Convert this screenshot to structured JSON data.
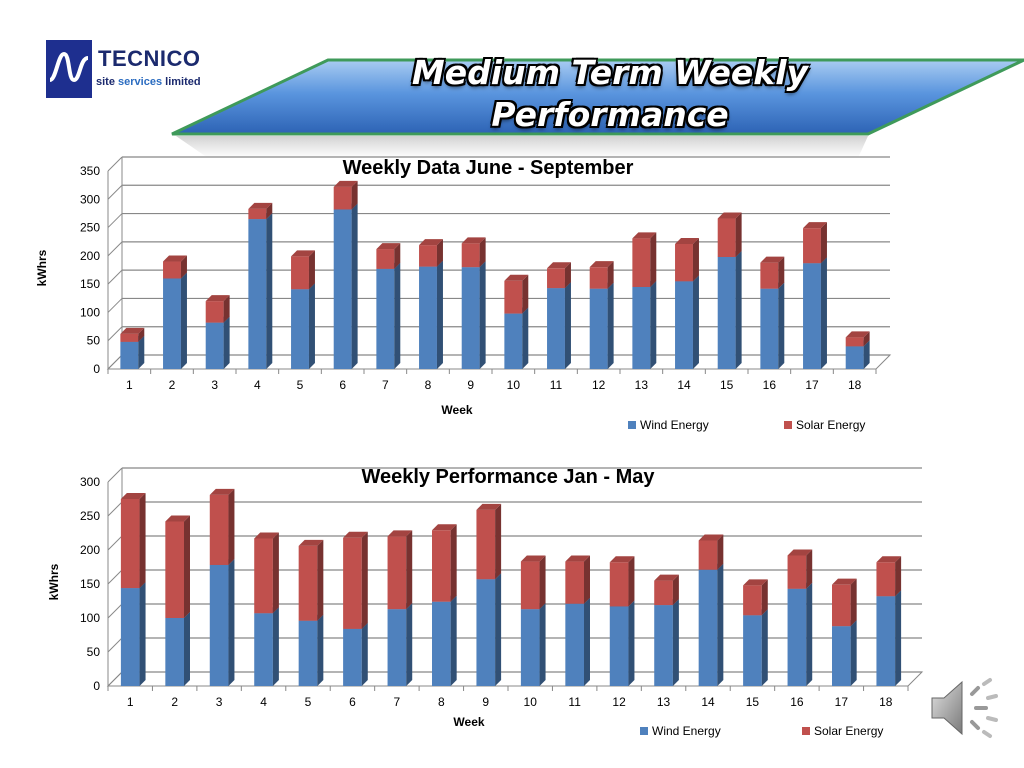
{
  "logo": {
    "name": "TECNICO",
    "subtitle_words": [
      "site",
      "services",
      "limited"
    ]
  },
  "banner": {
    "title_line1": "Medium Term Weekly",
    "title_line2": "Performance"
  },
  "colors": {
    "wind": "#4f81bd",
    "solar": "#c0504d",
    "banner": "#5b8fd6",
    "banner_border": "#2e8b57"
  },
  "icons": {
    "speaker": "speaker-icon",
    "logo": "tecnico-logo-icon"
  },
  "chart_data": [
    {
      "type": "bar",
      "stacked": true,
      "title": "Weekly Data June - September",
      "xlabel": "Week",
      "ylabel": "kWhrs",
      "ylim": [
        0,
        350
      ],
      "yticks": [
        0,
        50,
        100,
        150,
        200,
        250,
        300,
        350
      ],
      "grid": true,
      "legend_position": "bottom-right",
      "categories": [
        "1",
        "2",
        "3",
        "4",
        "5",
        "6",
        "7",
        "8",
        "9",
        "10",
        "11",
        "12",
        "13",
        "14",
        "15",
        "16",
        "17",
        "18"
      ],
      "series": [
        {
          "name": "Wind Energy",
          "values": [
            48,
            160,
            82,
            265,
            141,
            282,
            177,
            181,
            180,
            98,
            143,
            142,
            145,
            155,
            198,
            142,
            187,
            40
          ]
        },
        {
          "name": "Solar Energy",
          "values": [
            14,
            30,
            38,
            18,
            58,
            40,
            35,
            38,
            42,
            58,
            35,
            38,
            86,
            66,
            68,
            46,
            62,
            16
          ]
        }
      ]
    },
    {
      "type": "bar",
      "stacked": true,
      "title": "Weekly Performance Jan - May",
      "xlabel": "Week",
      "ylabel": "kWhrs",
      "ylim": [
        0,
        300
      ],
      "yticks": [
        0,
        50,
        100,
        150,
        200,
        250,
        300
      ],
      "grid": true,
      "legend_position": "bottom-right",
      "categories": [
        "1",
        "2",
        "3",
        "4",
        "5",
        "6",
        "7",
        "8",
        "9",
        "10",
        "11",
        "12",
        "13",
        "14",
        "15",
        "16",
        "17",
        "18"
      ],
      "series": [
        {
          "name": "Wind Energy",
          "values": [
            144,
            100,
            178,
            107,
            96,
            84,
            113,
            124,
            157,
            113,
            121,
            117,
            119,
            171,
            104,
            143,
            88,
            132
          ]
        },
        {
          "name": "Solar Energy",
          "values": [
            131,
            142,
            103,
            110,
            110,
            134,
            107,
            105,
            102,
            70,
            62,
            65,
            36,
            43,
            44,
            49,
            61,
            50
          ]
        }
      ]
    }
  ]
}
